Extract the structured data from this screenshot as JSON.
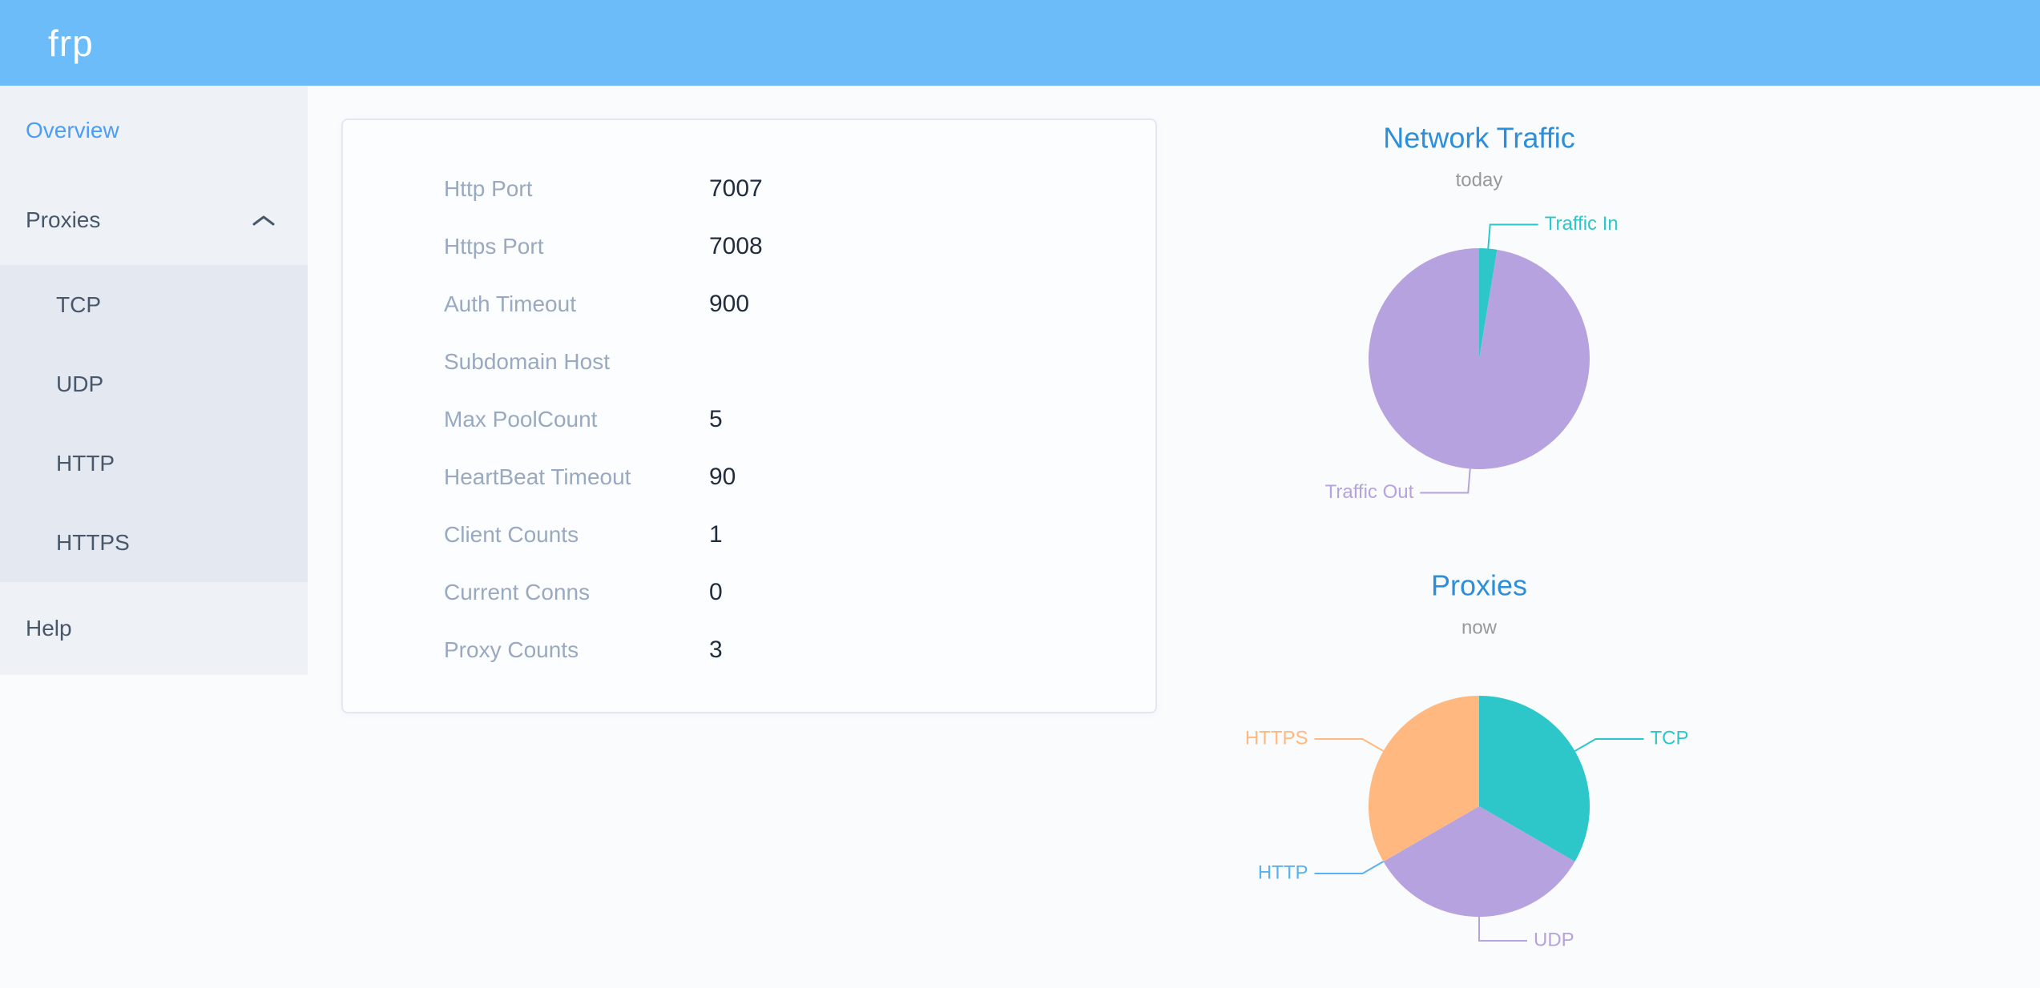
{
  "header": {
    "logo": "frp"
  },
  "sidebar": {
    "items": [
      {
        "label": "Overview",
        "active": true
      },
      {
        "label": "Proxies",
        "expanded": true,
        "children": [
          "TCP",
          "UDP",
          "HTTP",
          "HTTPS"
        ]
      },
      {
        "label": "Help"
      }
    ]
  },
  "overview_table": {
    "rows": [
      {
        "label": "Http Port",
        "value": "7007"
      },
      {
        "label": "Https Port",
        "value": "7008"
      },
      {
        "label": "Auth Timeout",
        "value": "900"
      },
      {
        "label": "Subdomain Host",
        "value": ""
      },
      {
        "label": "Max PoolCount",
        "value": "5"
      },
      {
        "label": "HeartBeat Timeout",
        "value": "90"
      },
      {
        "label": "Client Counts",
        "value": "1"
      },
      {
        "label": "Current Conns",
        "value": "0"
      },
      {
        "label": "Proxy Counts",
        "value": "3"
      }
    ]
  },
  "chart_data": [
    {
      "type": "pie",
      "title": "Network Traffic",
      "subtitle": "today",
      "labels": [
        "Traffic In",
        "Traffic Out"
      ],
      "values": [
        2.6,
        97.4
      ],
      "value_note": "proportions estimated from arc angles; no numeric values shown",
      "colors": [
        "#2ec7c9",
        "#b6a2de"
      ],
      "legend_position": "none",
      "label_style": "outside leader lines, colored like slices",
      "start_angle_deg": 0
    },
    {
      "type": "pie",
      "title": "Proxies",
      "subtitle": "now",
      "labels": [
        "TCP",
        "UDP",
        "HTTP",
        "HTTPS"
      ],
      "values": [
        1,
        1,
        0,
        1
      ],
      "colors": [
        "#2ec7c9",
        "#b6a2de",
        "#5ab1ef",
        "#ffb980"
      ],
      "legend_position": "none",
      "label_style": "outside leader lines, colored like slices",
      "start_angle_deg": 0
    }
  ],
  "colors": {
    "header_bg": "#6cbcfa",
    "sidebar_bg": "#eef1f6",
    "submenu_bg": "#e4e8f1",
    "menu_text": "#48576a",
    "menu_active": "#4a9ef8",
    "page_bg": "#fafbfc",
    "card_border": "#e3e7f3",
    "info_label": "#99a9bf",
    "info_value": "#1f2d3d",
    "chart_title": "#2d8fd9",
    "chart_subtitle": "#999999",
    "pie_teal": "#2ec7c9",
    "pie_purple": "#b6a2de",
    "pie_blue": "#5ab1ef",
    "pie_orange": "#ffb980"
  }
}
